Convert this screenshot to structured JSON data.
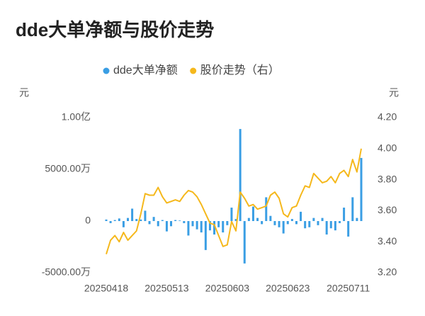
{
  "chart_data": {
    "type": "bar-line",
    "title": "dde大单净额与股价走势",
    "y_label": "元",
    "y2_label": "元",
    "categories": [
      "20250418",
      null,
      null,
      null,
      null,
      null,
      null,
      null,
      null,
      null,
      null,
      null,
      null,
      null,
      "20250513",
      null,
      null,
      null,
      null,
      null,
      null,
      null,
      null,
      null,
      null,
      null,
      null,
      null,
      "20250603",
      null,
      null,
      null,
      null,
      null,
      null,
      null,
      null,
      null,
      null,
      null,
      null,
      null,
      "20250623",
      null,
      null,
      null,
      null,
      null,
      null,
      null,
      null,
      null,
      null,
      null,
      null,
      null,
      "20250711",
      null,
      null,
      null
    ],
    "series": [
      {
        "name": "dde大单净额",
        "type": "bar",
        "color": "#3a9ee4",
        "values": [
          150,
          -200,
          100,
          250,
          -600,
          300,
          1200,
          200,
          150,
          1000,
          -300,
          400,
          -500,
          100,
          -1000,
          -500,
          100,
          50,
          -200,
          -1400,
          -500,
          -800,
          -1100,
          -2800,
          -900,
          -1300,
          -600,
          -1100,
          -400,
          1300,
          200,
          8900,
          -4100,
          300,
          1400,
          300,
          -300,
          2300,
          500,
          -400,
          -600,
          -1200,
          -300,
          200,
          -300,
          900,
          -700,
          -600,
          300,
          -400,
          300,
          -1300,
          -700,
          -900,
          -200,
          1300,
          -1500,
          2300,
          300,
          6100
        ]
      },
      {
        "name": "股价走势（右）",
        "type": "line",
        "axis": "y2",
        "color": "#f5b81c",
        "values": [
          3.32,
          3.41,
          3.44,
          3.4,
          3.46,
          3.41,
          3.44,
          3.47,
          3.58,
          3.71,
          3.7,
          3.7,
          3.75,
          3.69,
          3.65,
          3.66,
          3.67,
          3.66,
          3.7,
          3.73,
          3.72,
          3.69,
          3.64,
          3.58,
          3.52,
          3.51,
          3.44,
          3.37,
          3.38,
          3.53,
          3.47,
          3.72,
          3.68,
          3.63,
          3.64,
          3.61,
          3.62,
          3.63,
          3.7,
          3.72,
          3.68,
          3.58,
          3.56,
          3.62,
          3.63,
          3.7,
          3.76,
          3.75,
          3.84,
          3.81,
          3.78,
          3.79,
          3.82,
          3.78,
          3.84,
          3.86,
          3.82,
          3.93,
          3.85,
          4.0
        ]
      }
    ],
    "ylim": [
      -5000,
      10000
    ],
    "yticks": [
      {
        "value": -5000,
        "label": "-5000.00万"
      },
      0,
      {
        "value": 5000,
        "label": "5000.00万"
      },
      {
        "value": 10000,
        "label": "1.00亿"
      }
    ],
    "y2lim": [
      3.2,
      4.2
    ],
    "y2ticks": [
      {
        "value": 3.2,
        "label": "3.20"
      },
      {
        "value": 3.4,
        "label": "3.40"
      },
      {
        "value": 3.6,
        "label": "3.60"
      },
      {
        "value": 3.8,
        "label": "3.80"
      },
      {
        "value": 4.0,
        "label": "4.00"
      },
      {
        "value": 4.2,
        "label": "4.20"
      }
    ],
    "legend": "top"
  }
}
